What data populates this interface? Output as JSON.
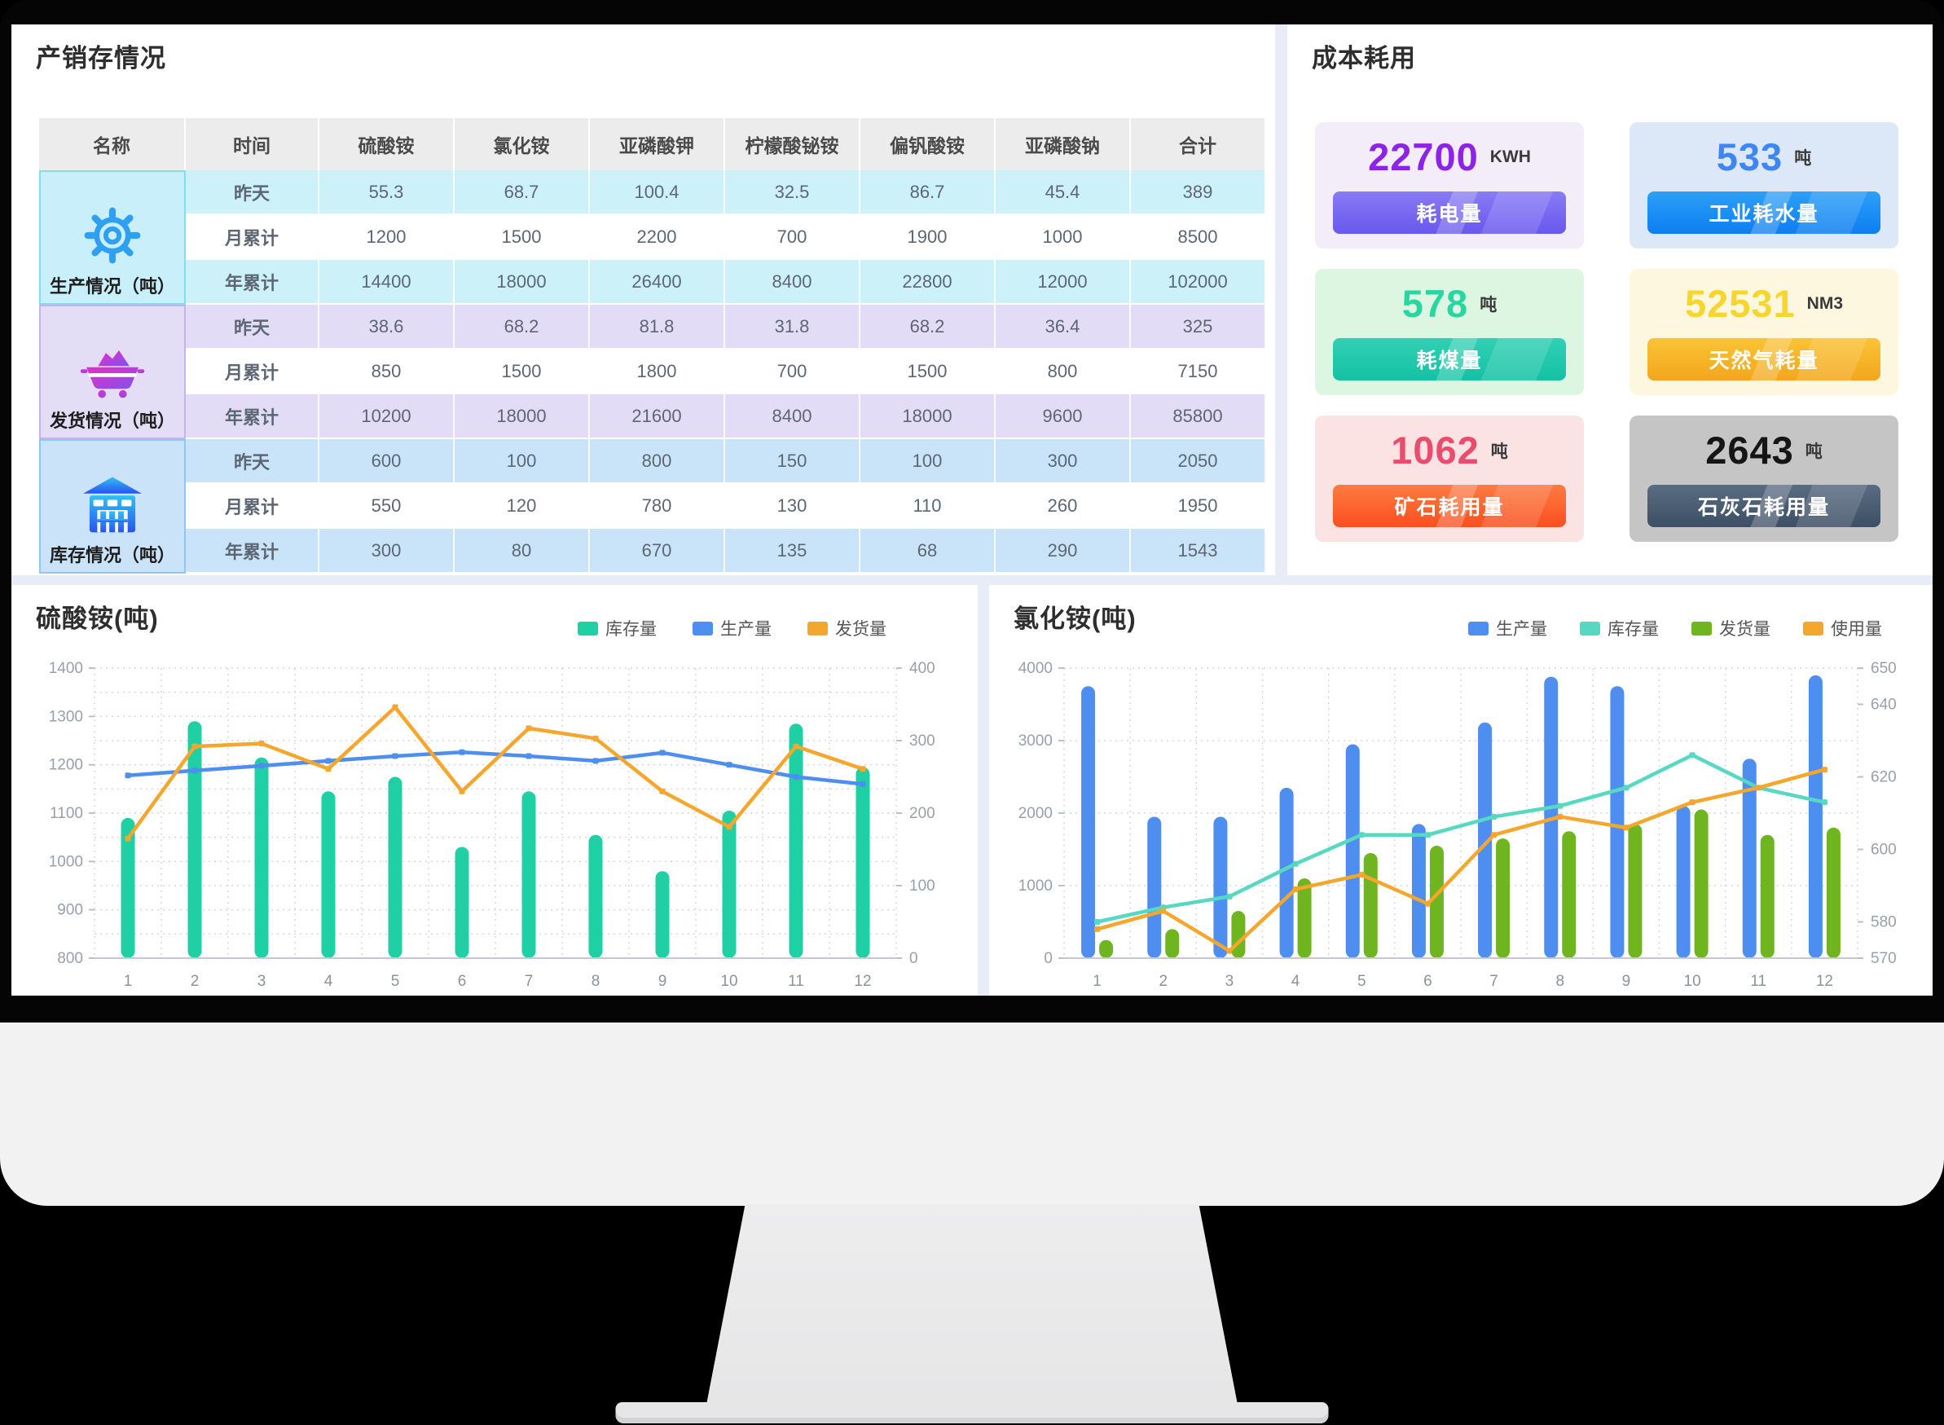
{
  "production_panel": {
    "title": "产销存情况",
    "table": {
      "headers": [
        "名称",
        "时间",
        "硫酸铵",
        "氯化铵",
        "亚磷酸钾",
        "柠檬酸铋铵",
        "偏钒酸铵",
        "亚磷酸钠",
        "合计"
      ],
      "groups": [
        {
          "name": "生产情况（吨）",
          "icon": "gear-icon",
          "tint": "#cdf1f8",
          "cell_bg": "#c9f0fa",
          "cell_border": "#86dcef",
          "rows": [
            {
              "time": "昨天",
              "values": [
                "55.3",
                "68.7",
                "100.4",
                "32.5",
                "86.7",
                "45.4",
                "389"
              ]
            },
            {
              "time": "月累计",
              "values": [
                "1200",
                "1500",
                "2200",
                "700",
                "1900",
                "1000",
                "8500"
              ]
            },
            {
              "time": "年累计",
              "values": [
                "14400",
                "18000",
                "26400",
                "8400",
                "22800",
                "12000",
                "102000"
              ]
            }
          ]
        },
        {
          "name": "发货情况（吨）",
          "icon": "cart-icon",
          "tint": "#e3dcf6",
          "cell_bg": "#e4ddf6",
          "cell_border": "#c3b4ec",
          "rows": [
            {
              "time": "昨天",
              "values": [
                "38.6",
                "68.2",
                "81.8",
                "31.8",
                "68.2",
                "36.4",
                "325"
              ]
            },
            {
              "time": "月累计",
              "values": [
                "850",
                "1500",
                "1800",
                "700",
                "1500",
                "800",
                "7150"
              ]
            },
            {
              "time": "年累计",
              "values": [
                "10200",
                "18000",
                "21600",
                "8400",
                "18000",
                "9600",
                "85800"
              ]
            }
          ]
        },
        {
          "name": "库存情况（吨）",
          "icon": "warehouse-icon",
          "tint": "#c9e3f9",
          "cell_bg": "#cbe3f9",
          "cell_border": "#92c6f2",
          "rows": [
            {
              "time": "昨天",
              "values": [
                "600",
                "100",
                "800",
                "150",
                "100",
                "300",
                "2050"
              ]
            },
            {
              "time": "月累计",
              "values": [
                "550",
                "120",
                "780",
                "130",
                "110",
                "260",
                "1950"
              ]
            },
            {
              "time": "年累计",
              "values": [
                "300",
                "80",
                "670",
                "135",
                "68",
                "290",
                "1543"
              ]
            }
          ]
        }
      ]
    }
  },
  "cost_panel": {
    "title": "成本耗用",
    "cards": [
      {
        "value": "22700",
        "unit": "KWH",
        "label": "耗电量",
        "value_color": "#8c23e6",
        "card_bg": "#f2edf8",
        "bar_from": "#8a7bf5",
        "bar_to": "#6858ef"
      },
      {
        "value": "533",
        "unit": "吨",
        "label": "工业耗水量",
        "value_color": "#3f86f5",
        "card_bg": "#dce8f8",
        "bar_from": "#2da0f7",
        "bar_to": "#0c7ef2"
      },
      {
        "value": "578",
        "unit": "吨",
        "label": "耗煤量",
        "value_color": "#28d6a2",
        "card_bg": "#ddf6e2",
        "bar_from": "#32d0b4",
        "bar_to": "#14c1a4"
      },
      {
        "value": "52531",
        "unit": "NM3",
        "label": "天然气耗量",
        "value_color": "#f6d62e",
        "card_bg": "#fdf7df",
        "bar_from": "#f9c435",
        "bar_to": "#f3a61d"
      },
      {
        "value": "1062",
        "unit": "吨",
        "label": "矿石耗用量",
        "value_color": "#ea4c6d",
        "card_bg": "#fbe2e3",
        "bar_from": "#fd7b43",
        "bar_to": "#fa4f1e"
      },
      {
        "value": "2643",
        "unit": "吨",
        "label": "石灰石耗用量",
        "value_color": "#151515",
        "card_bg": "#c5c5c6",
        "bar_from": "#5a6c81",
        "bar_to": "#3d4f64"
      }
    ]
  },
  "chart_data": [
    {
      "type": "bar",
      "subtype": "bar+line combo, dual y-axis",
      "title": "硫酸铵(吨)",
      "categories": [
        "1",
        "2",
        "3",
        "4",
        "5",
        "6",
        "7",
        "8",
        "9",
        "10",
        "11",
        "12"
      ],
      "left_axis": {
        "min": 800,
        "max": 1400,
        "ticks": [
          800,
          900,
          1000,
          1100,
          1200,
          1300,
          1400
        ],
        "grid_interval": 50
      },
      "right_axis": {
        "min": 0,
        "max": 400,
        "ticks": [
          0,
          100,
          200,
          300,
          400
        ]
      },
      "grid": "dashed",
      "legend_position": "top-right",
      "series": [
        {
          "name": "库存量",
          "type": "bar",
          "axis": "left",
          "color": "#1fd0a4",
          "values": [
            1090,
            1290,
            1215,
            1145,
            1175,
            1030,
            1145,
            1055,
            980,
            1105,
            1285,
            1195
          ]
        },
        {
          "name": "生产量",
          "type": "line",
          "axis": "left",
          "color": "#4e8ef0",
          "values": [
            1178,
            1188,
            1198,
            1208,
            1218,
            1226,
            1218,
            1208,
            1225,
            1200,
            1175,
            1160
          ]
        },
        {
          "name": "发货量",
          "type": "line",
          "axis": "right",
          "color": "#f5a62d",
          "values": [
            165,
            292,
            296,
            261,
            346,
            230,
            317,
            303,
            230,
            181,
            292,
            261
          ]
        }
      ]
    },
    {
      "type": "bar",
      "subtype": "bar+line combo, dual y-axis",
      "title": "氯化铵(吨)",
      "categories": [
        "1",
        "2",
        "3",
        "4",
        "5",
        "6",
        "7",
        "8",
        "9",
        "10",
        "11",
        "12"
      ],
      "left_axis": {
        "min": 0,
        "max": 4000,
        "ticks": [
          0,
          1000,
          2000,
          3000,
          4000
        ],
        "grid_interval": 1000
      },
      "right_axis": {
        "min": 570,
        "max": 650,
        "ticks": [
          570,
          580,
          600,
          620,
          640,
          650
        ]
      },
      "grid": "dashed",
      "legend_position": "top-right",
      "series": [
        {
          "name": "生产量",
          "type": "bar",
          "axis": "left",
          "color": "#4e8ef0",
          "values": [
            3750,
            1950,
            1950,
            2350,
            2950,
            1850,
            3250,
            3880,
            3750,
            2100,
            2750,
            3900
          ]
        },
        {
          "name": "库存量",
          "type": "line",
          "axis": "right",
          "color": "#57d8c3",
          "values": [
            580,
            584,
            587,
            596,
            604,
            604,
            609,
            612,
            617,
            626,
            617,
            613
          ]
        },
        {
          "name": "发货量",
          "type": "bar",
          "axis": "left",
          "color": "#6fb51f",
          "values": [
            250,
            400,
            650,
            1100,
            1450,
            1550,
            1650,
            1750,
            1850,
            2050,
            1700,
            1800
          ]
        },
        {
          "name": "使用量",
          "type": "line",
          "axis": "right",
          "color": "#f5a62d",
          "values": [
            578,
            583,
            572,
            589,
            593,
            585,
            604,
            609,
            606,
            613,
            617,
            622
          ]
        }
      ]
    }
  ]
}
